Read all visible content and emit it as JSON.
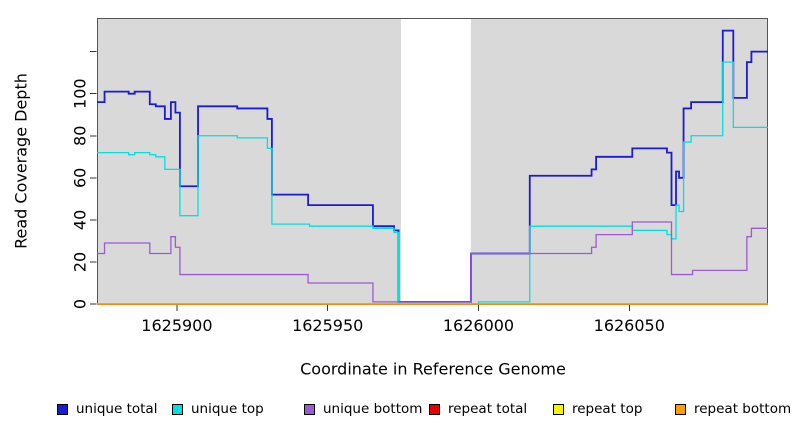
{
  "chart_data": {
    "type": "line",
    "subtype": "step-coverage-plot",
    "title": "",
    "xlabel": "Coordinate in Reference Genome",
    "ylabel": "Read Coverage Depth",
    "xlim": [
      1625873.5,
      1626096
    ],
    "ylim": [
      0,
      136
    ],
    "x_ticks": [
      1625900,
      1625950,
      1626000,
      1626050
    ],
    "y_ticks": [
      0,
      20,
      40,
      60,
      80,
      100
    ],
    "y_extra_unlabeled_ticks": [
      120
    ],
    "grid": "off",
    "plot_background_color": "#d9d9d9",
    "uncovered_band": {
      "from": 1625974.3,
      "to": 1625997.5,
      "color": "#ffffff"
    },
    "axis_color": "#000000",
    "box_color": "#555555",
    "legend_position": "bottom",
    "series": [
      {
        "name": "unique total",
        "color": "#1b1bd1",
        "line_width": 1.8,
        "steps": [
          [
            1625873.5,
            96
          ],
          [
            1625876,
            101
          ],
          [
            1625884,
            100
          ],
          [
            1625886,
            101
          ],
          [
            1625891,
            95
          ],
          [
            1625893,
            94
          ],
          [
            1625896,
            88
          ],
          [
            1625898,
            96
          ],
          [
            1625899.5,
            91
          ],
          [
            1625901,
            56
          ],
          [
            1625907,
            94
          ],
          [
            1625920,
            93
          ],
          [
            1625930,
            88
          ],
          [
            1625931.5,
            52
          ],
          [
            1625943.5,
            47
          ],
          [
            1625965,
            37
          ],
          [
            1625972,
            35
          ],
          [
            1625973.5,
            1
          ],
          [
            1625997.5,
            24
          ],
          [
            1626017,
            61
          ],
          [
            1626037.5,
            64
          ],
          [
            1626039,
            70
          ],
          [
            1626051,
            74
          ],
          [
            1626062.5,
            72
          ],
          [
            1626064,
            47
          ],
          [
            1626065.5,
            63
          ],
          [
            1626066.5,
            60
          ],
          [
            1626068,
            93
          ],
          [
            1626070.5,
            96
          ],
          [
            1626081,
            130
          ],
          [
            1626084.5,
            98
          ],
          [
            1626089,
            115
          ],
          [
            1626090.5,
            120
          ]
        ]
      },
      {
        "name": "unique top",
        "color": "#00e0e0",
        "line_width": 1.3,
        "steps": [
          [
            1625873.5,
            72
          ],
          [
            1625884,
            71
          ],
          [
            1625886,
            72
          ],
          [
            1625891,
            71
          ],
          [
            1625893,
            70
          ],
          [
            1625896,
            64
          ],
          [
            1625901,
            42
          ],
          [
            1625907,
            80
          ],
          [
            1625920,
            79
          ],
          [
            1625930,
            74
          ],
          [
            1625931.5,
            38
          ],
          [
            1625944,
            37
          ],
          [
            1625965,
            36
          ],
          [
            1625972,
            34
          ],
          [
            1625973.5,
            0
          ],
          [
            1626000,
            1
          ],
          [
            1626017,
            37
          ],
          [
            1626051,
            35
          ],
          [
            1626062.5,
            33
          ],
          [
            1626064,
            31
          ],
          [
            1626065.5,
            47
          ],
          [
            1626066.5,
            44
          ],
          [
            1626068,
            77
          ],
          [
            1626070.5,
            80
          ],
          [
            1626081,
            115
          ],
          [
            1626084.5,
            84
          ]
        ]
      },
      {
        "name": "unique bottom",
        "color": "#9c5bd2",
        "line_width": 1.3,
        "steps": [
          [
            1625873.5,
            24
          ],
          [
            1625876,
            29
          ],
          [
            1625891,
            24
          ],
          [
            1625898,
            32
          ],
          [
            1625899.5,
            27
          ],
          [
            1625901,
            14
          ],
          [
            1625943.5,
            10
          ],
          [
            1625965,
            1
          ],
          [
            1625997.5,
            24
          ],
          [
            1626037.5,
            27
          ],
          [
            1626039,
            33
          ],
          [
            1626051,
            39
          ],
          [
            1626064,
            14
          ],
          [
            1626071,
            16
          ],
          [
            1626089,
            32
          ],
          [
            1626090.5,
            36
          ]
        ]
      },
      {
        "name": "repeat total",
        "color": "#e60000",
        "line_width": 1.2,
        "steps": [
          [
            1625873.5,
            0
          ]
        ]
      },
      {
        "name": "repeat top",
        "color": "#f5f500",
        "line_width": 1.2,
        "steps": [
          [
            1625873.5,
            0
          ]
        ]
      },
      {
        "name": "repeat bottom",
        "color": "#ff9d00",
        "line_width": 1.6,
        "steps": [
          [
            1625873.5,
            0
          ]
        ]
      }
    ]
  }
}
